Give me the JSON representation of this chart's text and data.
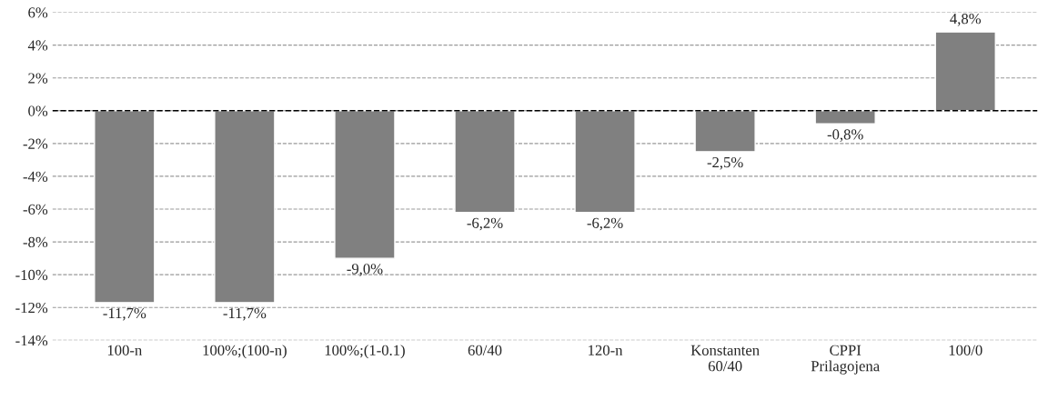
{
  "chart_data": {
    "type": "bar",
    "categories": [
      "100-n",
      "100%;(100-n)",
      "100%;(1-0.1)",
      "60/40",
      "120-n",
      "Konstanten\n60/40",
      "CPPI\nPrilagojena",
      "100/0"
    ],
    "values": [
      -11.7,
      -11.7,
      -9.0,
      -6.2,
      -6.2,
      -2.5,
      -0.8,
      4.8
    ],
    "value_labels": [
      "-11,7%",
      "-11,7%",
      "-9,0%",
      "-6,2%",
      "-6,2%",
      "-2,5%",
      "-0,8%",
      "4,8%"
    ],
    "color": "#808080",
    "ylim": [
      -14,
      6
    ],
    "yticks": [
      {
        "value": -14,
        "label": "-14%"
      },
      {
        "value": -12,
        "label": "-12%"
      },
      {
        "value": -10,
        "label": "-10%"
      },
      {
        "value": -8,
        "label": "-8%"
      },
      {
        "value": -6,
        "label": "-6%"
      },
      {
        "value": -4,
        "label": "-4%"
      },
      {
        "value": -2,
        "label": "-2%"
      },
      {
        "value": 0,
        "label": "0%"
      },
      {
        "value": 2,
        "label": "2%"
      },
      {
        "value": 4,
        "label": "4%"
      },
      {
        "value": 6,
        "label": "6%"
      }
    ],
    "grid": "y",
    "ref_lines": [
      {
        "axis": "y",
        "value": 0,
        "color": "#000000",
        "line_style": "dashed"
      }
    ]
  }
}
